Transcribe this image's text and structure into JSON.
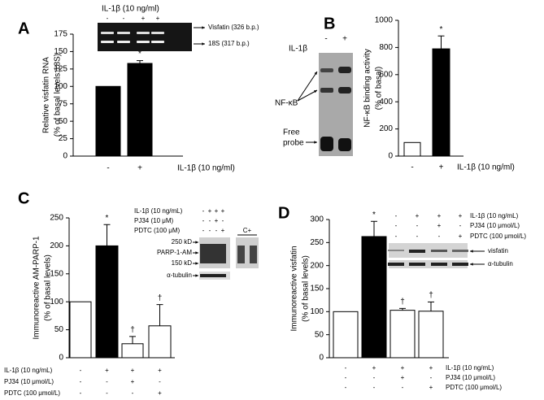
{
  "chart_data": [
    {
      "type": "bar",
      "panel": "A",
      "ylabel": [
        "Relative visfatin RNA",
        "(% of basal levels:18S)"
      ],
      "xlabel": "IL-1β (10 ng/ml)",
      "categories": [
        "-",
        "+"
      ],
      "values": [
        100,
        133
      ],
      "errors": [
        null,
        4
      ],
      "colors": [
        "#000000",
        "#000000"
      ],
      "markers": [
        null,
        "*"
      ],
      "ylim": [
        0,
        175
      ],
      "yticks": [
        0,
        25,
        50,
        75,
        100,
        125,
        150,
        175
      ],
      "inset": {
        "title": "IL-1β (10 ng/ml)",
        "signs": [
          "-",
          "-",
          "+",
          "+"
        ],
        "bands": [
          "Visfatin (326 b.p.)",
          "18S (317 b.p.)"
        ]
      }
    },
    {
      "type": "bar",
      "panel": "B",
      "ylabel": [
        "NF-κB binding activity",
        "(% of basal)"
      ],
      "xlabel": "IL-1β (10 ng/ml)",
      "categories": [
        "-",
        "+"
      ],
      "values": [
        100,
        790
      ],
      "errors": [
        null,
        95
      ],
      "colors": [
        "#ffffff",
        "#000000"
      ],
      "markers": [
        null,
        "*"
      ],
      "ylim": [
        0,
        1000
      ],
      "yticks": [
        0,
        200,
        400,
        600,
        800,
        1000
      ],
      "inset": {
        "title": "IL-1β",
        "signs": [
          "-",
          "+"
        ],
        "bands": [
          "NF-κB",
          [
            "Free",
            "probe"
          ]
        ]
      }
    },
    {
      "type": "bar",
      "panel": "C",
      "ylabel": [
        "Immunoreactive AM-PARP-1",
        "(% of basal levels)"
      ],
      "categories": [
        null,
        null,
        null,
        null
      ],
      "values": [
        100,
        200,
        25,
        57
      ],
      "errors": [
        null,
        38,
        13,
        38
      ],
      "colors": [
        "#ffffff",
        "#000000",
        "#ffffff",
        "#ffffff"
      ],
      "markers": [
        null,
        "*",
        "†",
        "†"
      ],
      "ylim": [
        0,
        250
      ],
      "yticks": [
        0,
        50,
        100,
        150,
        200,
        250
      ],
      "conditions": [
        {
          "name": "IL-1β (10 ng/mL)",
          "signs": [
            "-",
            "+",
            "+",
            "+"
          ]
        },
        {
          "name": "PJ34 (10 μmol/L)",
          "signs": [
            "-",
            "-",
            "+",
            "-"
          ]
        },
        {
          "name": "PDTC (100 μmol/L)",
          "signs": [
            "-",
            "-",
            "-",
            "+"
          ]
        }
      ],
      "inset": {
        "rows": [
          {
            "name": "IL-1β (10 ng/mL)",
            "signs": [
              "-",
              "+",
              "+",
              "+"
            ]
          },
          {
            "name": "PJ34 (10 μM)",
            "signs": [
              "-",
              "-",
              "+",
              "-"
            ]
          },
          {
            "name": "PDTC (100 μM)",
            "signs": [
              "-",
              "-",
              "-",
              "+"
            ]
          }
        ],
        "control": "C+",
        "bands": [
          "250 kD",
          "PARP-1-AM",
          "150 kD",
          "α-tubulin"
        ]
      }
    },
    {
      "type": "bar",
      "panel": "D",
      "ylabel": [
        "Immunoreactive visfatin",
        "(% of basal levels)"
      ],
      "categories": [
        null,
        null,
        null,
        null
      ],
      "values": [
        100,
        263,
        103,
        101
      ],
      "errors": [
        null,
        33,
        4,
        20
      ],
      "colors": [
        "#ffffff",
        "#000000",
        "#ffffff",
        "#ffffff"
      ],
      "markers": [
        null,
        "*",
        "†",
        "†"
      ],
      "ylim": [
        0,
        300
      ],
      "yticks": [
        0,
        50,
        100,
        150,
        200,
        250,
        300
      ],
      "conditions": [
        {
          "name": "IL-1β (10 ng/mL)",
          "signs": [
            "-",
            "+",
            "+",
            "+"
          ]
        },
        {
          "name": "PJ34 (10 μmol/L)",
          "signs": [
            "-",
            "-",
            "+",
            "-"
          ]
        },
        {
          "name": "PDTC (100 μmol/L)",
          "signs": [
            "-",
            "-",
            "-",
            "+"
          ]
        }
      ],
      "inset": {
        "rows": [
          {
            "name": "IL-1β (10 ng/mL)",
            "signs": [
              "-",
              "+",
              "+",
              "+"
            ]
          },
          {
            "name": "PJ34 (10 μmol/L)",
            "signs": [
              "-",
              "-",
              "+",
              "-"
            ]
          },
          {
            "name": "PDTC (100 μmol/L)",
            "signs": [
              "-",
              "-",
              "-",
              "+"
            ]
          }
        ],
        "bands": [
          "visfatin",
          "α-tubulin"
        ]
      }
    }
  ]
}
